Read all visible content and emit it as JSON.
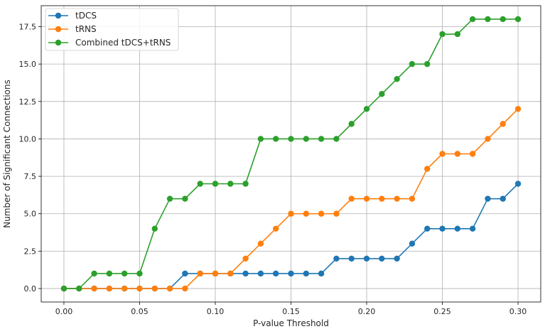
{
  "chart_data": {
    "type": "line",
    "title": "",
    "xlabel": "P-value Threshold",
    "ylabel": "Number of Significant Connections",
    "xlim": [
      -0.015,
      0.315
    ],
    "ylim": [
      -0.9,
      18.9
    ],
    "xticks": [
      0.0,
      0.05,
      0.1,
      0.15,
      0.2,
      0.25,
      0.3
    ],
    "xtick_labels": [
      "0.00",
      "0.05",
      "0.10",
      "0.15",
      "0.20",
      "0.25",
      "0.30"
    ],
    "yticks": [
      0.0,
      2.5,
      5.0,
      7.5,
      10.0,
      12.5,
      15.0,
      17.5
    ],
    "ytick_labels": [
      "0.0",
      "2.5",
      "5.0",
      "7.5",
      "10.0",
      "12.5",
      "15.0",
      "17.5"
    ],
    "grid": true,
    "legend_position": "top-left",
    "x": [
      0.0,
      0.01,
      0.02,
      0.03,
      0.04,
      0.05,
      0.06,
      0.07,
      0.08,
      0.09,
      0.1,
      0.11,
      0.12,
      0.13,
      0.14,
      0.15,
      0.16,
      0.17,
      0.18,
      0.19,
      0.2,
      0.21,
      0.22,
      0.23,
      0.24,
      0.25,
      0.26,
      0.27,
      0.28,
      0.29,
      0.3
    ],
    "series": [
      {
        "name": "tDCS",
        "color": "#1f77b4",
        "values": [
          0,
          0,
          0,
          0,
          0,
          0,
          0,
          0,
          1,
          1,
          1,
          1,
          1,
          1,
          1,
          1,
          1,
          1,
          2,
          2,
          2,
          2,
          2,
          3,
          4,
          4,
          4,
          4,
          6,
          6,
          7
        ]
      },
      {
        "name": "tRNS",
        "color": "#ff7f0e",
        "values": [
          0,
          0,
          0,
          0,
          0,
          0,
          0,
          0,
          0,
          1,
          1,
          1,
          2,
          3,
          4,
          5,
          5,
          5,
          5,
          6,
          6,
          6,
          6,
          6,
          8,
          9,
          9,
          9,
          10,
          11,
          12
        ]
      },
      {
        "name": "Combined tDCS+tRNS",
        "color": "#2ca02c",
        "values": [
          0,
          0,
          1,
          1,
          1,
          1,
          4,
          6,
          6,
          7,
          7,
          7,
          7,
          10,
          10,
          10,
          10,
          10,
          10,
          11,
          12,
          13,
          14,
          15,
          15,
          17,
          17,
          18,
          18,
          18,
          18
        ]
      }
    ]
  }
}
